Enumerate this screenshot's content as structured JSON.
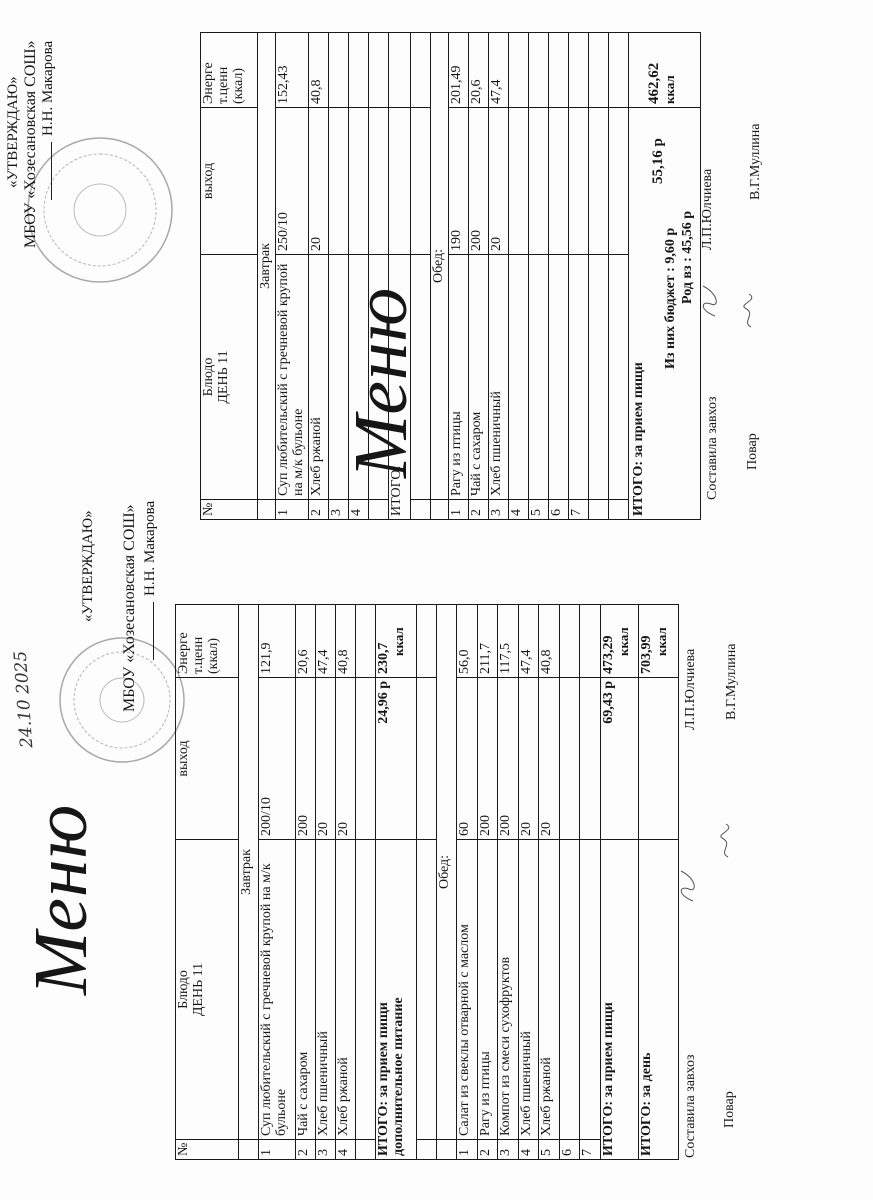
{
  "menus": [
    {
      "title": "Меню",
      "date_handwritten": "24.10 2025",
      "approve": "«УТВЕРЖДАЮ»",
      "school": "МБОУ «Хозесановская СОШ»",
      "director": "Н.Н. Макарова",
      "headers": {
        "num": "№",
        "dish": "Блюдо",
        "day": "ДЕНЬ 11",
        "yield": "выход",
        "energy": "Энерге т.ценн (ккал)"
      },
      "rows": [
        {
          "type": "section",
          "label": "Завтрак"
        },
        {
          "type": "item",
          "n": "1",
          "dish": "Суп любительский с гречневой крупой  на м/к бульоне",
          "yield": "200/10",
          "energy": "121,9"
        },
        {
          "type": "item",
          "n": "2",
          "dish": "Чай с сахаром",
          "yield": "200",
          "energy": "20,6"
        },
        {
          "type": "item",
          "n": "3",
          "dish": "Хлеб пшеничный",
          "yield": "20",
          "energy": "47,4"
        },
        {
          "type": "item",
          "n": "4",
          "dish": "Хлеб ржаной",
          "yield": "20",
          "energy": "40,8"
        },
        {
          "type": "blank"
        },
        {
          "type": "total",
          "label": "ИТОГО: за прием пищи",
          "label2": "дополнительное питание",
          "yield": "24,96 р",
          "energy": "230,7",
          "energy_unit": "ккал"
        },
        {
          "type": "blank"
        },
        {
          "type": "section",
          "label": "Обед:"
        },
        {
          "type": "item",
          "n": "1",
          "dish": "Салат из свеклы отварной с маслом",
          "yield": "60",
          "energy": "56,0"
        },
        {
          "type": "item",
          "n": "2",
          "dish": "Рагу из птицы",
          "yield": "200",
          "energy": "211,7"
        },
        {
          "type": "item",
          "n": "3",
          "dish": "Компот из смеси сухофруктов",
          "yield": "200",
          "energy": "117,5"
        },
        {
          "type": "item",
          "n": "4",
          "dish": "Хлеб пшеничный",
          "yield": "20",
          "energy": "47,4"
        },
        {
          "type": "item",
          "n": "5",
          "dish": "Хлеб ржаной",
          "yield": "20",
          "energy": "40,8"
        },
        {
          "type": "item",
          "n": "6",
          "dish": "",
          "yield": "",
          "energy": ""
        },
        {
          "type": "item",
          "n": "7",
          "dish": "",
          "yield": "",
          "energy": ""
        },
        {
          "type": "total",
          "label": "ИТОГО: за прием пищи",
          "yield": "69,43 р",
          "energy": "473,29",
          "energy_unit": "ккал"
        },
        {
          "type": "total",
          "label": "ИТОГО: за день",
          "yield": "",
          "energy": "703,99",
          "energy_unit": "ккал"
        }
      ],
      "footer": {
        "compiled_label": "Составила завхоз",
        "compiled_name": "Л.П.Юлчиева",
        "cook_label": "Повар",
        "cook_name": "В.Г.Муллина"
      }
    },
    {
      "title": "Меню",
      "approve": "«УТВЕРЖДАЮ»",
      "school": "МБОУ «Хозесановская СОШ»",
      "director": "Н.Н. Макарова",
      "headers": {
        "num": "№",
        "dish": "Блюдо",
        "day": "ДЕНЬ 11",
        "yield": "выход",
        "energy": "Энерге т.ценн (ккал)"
      },
      "rows": [
        {
          "type": "section",
          "label": "Завтрак"
        },
        {
          "type": "item",
          "n": "1",
          "dish": "Суп любительский с гречневой крупой  на м/к бульоне",
          "yield": "250/10",
          "energy": "152,43"
        },
        {
          "type": "item",
          "n": "2",
          "dish": "Хлеб ржаной",
          "yield": "20",
          "energy": "40,8"
        },
        {
          "type": "item",
          "n": "3",
          "dish": "",
          "yield": "",
          "energy": ""
        },
        {
          "type": "item",
          "n": "4",
          "dish": "",
          "yield": "",
          "energy": ""
        },
        {
          "type": "blank"
        },
        {
          "type": "total",
          "label": "ИТОГО:",
          "plain": true,
          "yield": "",
          "energy": ""
        },
        {
          "type": "blank"
        },
        {
          "type": "section",
          "label": "Обед:"
        },
        {
          "type": "item",
          "n": "1",
          "dish": "Рагу из птицы",
          "yield": "190",
          "energy": "201,49"
        },
        {
          "type": "item",
          "n": "2",
          "dish": "Чай с сахаром",
          "yield": "200",
          "energy": "20,6"
        },
        {
          "type": "item",
          "n": "3",
          "dish": "Хлеб пшеничный",
          "yield": "20",
          "energy": "47,4"
        },
        {
          "type": "item",
          "n": "4",
          "dish": "",
          "yield": "",
          "energy": ""
        },
        {
          "type": "item",
          "n": "5",
          "dish": "",
          "yield": "",
          "energy": ""
        },
        {
          "type": "item",
          "n": "6",
          "dish": "",
          "yield": "",
          "energy": ""
        },
        {
          "type": "item",
          "n": "7",
          "dish": "",
          "yield": "",
          "energy": ""
        },
        {
          "type": "blank"
        },
        {
          "type": "blank"
        },
        {
          "type": "grand",
          "label": "ИТОГО: за прием пищи",
          "budget": "Из них бюджет :  9,60 р",
          "parents": "Род вз  :  45,56 р",
          "yield": "55,16 р",
          "energy": "462,62",
          "energy_unit": "ккал"
        }
      ],
      "footer": {
        "compiled_label": "Составила завхоз",
        "compiled_name": "Л.П.Юлчиева",
        "cook_label": "Повар",
        "cook_name": "В.Г.Муллина"
      }
    }
  ],
  "colors": {
    "ink": "#161616",
    "stamp": "#9a9a9a",
    "paper": "#fdfdfd"
  }
}
